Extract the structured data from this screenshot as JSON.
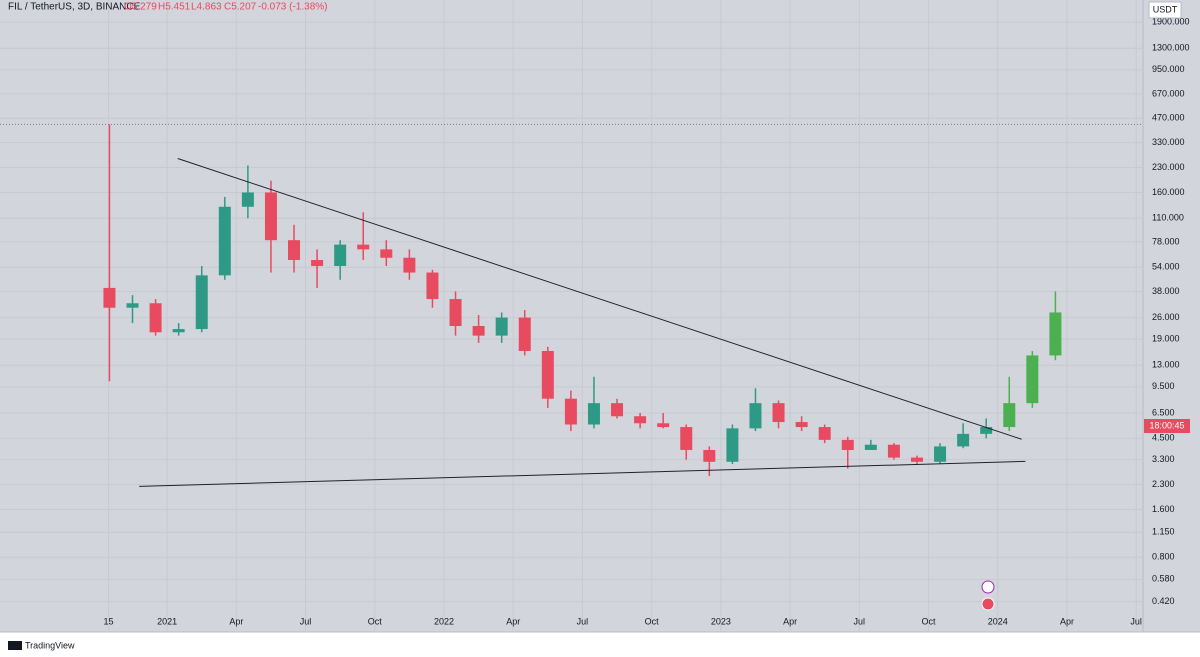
{
  "header": {
    "symbol": "FIL / TetherUS, 3D, BINANCE",
    "open": "O5.279",
    "high": "H5.451",
    "low": "L4.863",
    "close": "C5.207",
    "change": "-0.073 (-1.38%)",
    "currency": "USDT",
    "countdown": "18:00:45",
    "brand": "TradingView"
  },
  "chart_data": {
    "type": "candlestick",
    "log_scale": true,
    "grid": true,
    "up_color": "#2e9a85",
    "down_color": "#e84a5f",
    "projection_color": "#4caf50",
    "trendline_color": "#1e222d",
    "xlim": [
      "2020-05-24",
      "2024-07-10"
    ],
    "ylim": [
      0.27,
      2620
    ],
    "xticks": [
      {
        "value": "2020-10-15",
        "label": "15"
      },
      {
        "value": "2021-01",
        "label": "2021"
      },
      {
        "value": "2021-04",
        "label": "Apr"
      },
      {
        "value": "2021-07",
        "label": "Jul"
      },
      {
        "value": "2021-10",
        "label": "Oct"
      },
      {
        "value": "2022-01",
        "label": "2022"
      },
      {
        "value": "2022-04",
        "label": "Apr"
      },
      {
        "value": "2022-07",
        "label": "Jul"
      },
      {
        "value": "2022-10",
        "label": "Oct"
      },
      {
        "value": "2023-01",
        "label": "2023"
      },
      {
        "value": "2023-04",
        "label": "Apr"
      },
      {
        "value": "2023-07",
        "label": "Jul"
      },
      {
        "value": "2023-10",
        "label": "Oct"
      },
      {
        "value": "2024-01",
        "label": "2024"
      },
      {
        "value": "2024-04",
        "label": "Apr"
      },
      {
        "value": "2024-07",
        "label": "Jul"
      }
    ],
    "yticks": [
      {
        "value": 1900,
        "label": "1900.000"
      },
      {
        "value": 1300,
        "label": "1300.000"
      },
      {
        "value": 950,
        "label": "950.000"
      },
      {
        "value": 670,
        "label": "670.000"
      },
      {
        "value": 470,
        "label": "470.000"
      },
      {
        "value": 330,
        "label": "330.000"
      },
      {
        "value": 230,
        "label": "230.000"
      },
      {
        "value": 160,
        "label": "160.000"
      },
      {
        "value": 110,
        "label": "110.000"
      },
      {
        "value": 78,
        "label": "78.000"
      },
      {
        "value": 54,
        "label": "54.000"
      },
      {
        "value": 38,
        "label": "38.000"
      },
      {
        "value": 26,
        "label": "26.000"
      },
      {
        "value": 19,
        "label": "19.000"
      },
      {
        "value": 13,
        "label": "13.000"
      },
      {
        "value": 9.5,
        "label": "9.500"
      },
      {
        "value": 6.5,
        "label": "6.500"
      },
      {
        "value": 4.5,
        "label": "4.500"
      },
      {
        "value": 3.3,
        "label": "3.300"
      },
      {
        "value": 2.3,
        "label": "2.300"
      },
      {
        "value": 1.6,
        "label": "1.600"
      },
      {
        "value": 1.15,
        "label": "1.150"
      },
      {
        "value": 0.8,
        "label": "0.800"
      },
      {
        "value": 0.58,
        "label": "0.580"
      },
      {
        "value": 0.42,
        "label": "0.420"
      }
    ],
    "candles": {
      "x": [
        "2020-10",
        "2020-11",
        "2020-12",
        "2021-01",
        "2021-02",
        "2021-03",
        "2021-04",
        "2021-05",
        "2021-06",
        "2021-07",
        "2021-08",
        "2021-09",
        "2021-10",
        "2021-11",
        "2021-12",
        "2022-01",
        "2022-02",
        "2022-03",
        "2022-04",
        "2022-05",
        "2022-06",
        "2022-07",
        "2022-08",
        "2022-09",
        "2022-10",
        "2022-11",
        "2022-12",
        "2023-01",
        "2023-02",
        "2023-03",
        "2023-04",
        "2023-05",
        "2023-06",
        "2023-07",
        "2023-08",
        "2023-09",
        "2023-10",
        "2023-11",
        "2023-12"
      ],
      "open": [
        40,
        30,
        32,
        21,
        22,
        48,
        130,
        160,
        80,
        60,
        55,
        75,
        70,
        62,
        50,
        34,
        23,
        20,
        26,
        16,
        8,
        5.5,
        7.5,
        6.2,
        5.6,
        5.3,
        3.8,
        3.2,
        5.2,
        7.5,
        5.7,
        5.3,
        4.4,
        3.8,
        4.1,
        3.4,
        3.2,
        4.0,
        4.8
      ],
      "high": [
        430,
        36,
        34,
        24,
        55,
        150,
        237,
        190,
        100,
        70,
        80,
        120,
        80,
        70,
        52,
        38,
        27,
        28,
        29,
        17,
        9,
        11,
        8,
        6.5,
        6.5,
        5.5,
        4,
        5.5,
        9.3,
        7.8,
        6.2,
        5.5,
        4.6,
        4.4,
        4.2,
        3.5,
        4.2,
        5.6,
        6
      ],
      "low": [
        10.3,
        24,
        20,
        20,
        21,
        45,
        110,
        50,
        50,
        40,
        45,
        60,
        55,
        45,
        30,
        20,
        18,
        18,
        15,
        7,
        5,
        5.2,
        6,
        5.2,
        5.2,
        3.3,
        2.6,
        3.1,
        5,
        5.2,
        5,
        4.2,
        2.9,
        3.8,
        3.3,
        3.1,
        3.1,
        3.9,
        4.5
      ],
      "close": [
        30,
        32,
        21,
        22,
        48,
        130,
        160,
        80,
        60,
        55,
        75,
        70,
        62,
        50,
        34,
        23,
        20,
        26,
        16,
        8,
        5.5,
        7.5,
        6.2,
        5.6,
        5.3,
        3.8,
        3.2,
        5.2,
        7.5,
        5.7,
        5.3,
        4.4,
        3.8,
        4.1,
        3.4,
        3.2,
        4.0,
        4.8,
        5.3
      ]
    },
    "projection": {
      "x": [
        "2024-01",
        "2024-02",
        "2024-03"
      ],
      "open": [
        5.3,
        7.5,
        15
      ],
      "high": [
        11,
        16,
        38
      ],
      "low": [
        5,
        7,
        14
      ],
      "close": [
        7.5,
        15,
        28
      ]
    },
    "trendlines": [
      {
        "x": [
          "2021-01-15",
          "2024-02-02"
        ],
        "y": [
          262,
          4.44
        ]
      },
      {
        "x": [
          "2020-11-25",
          "2024-02-07"
        ],
        "y": [
          2.24,
          3.22
        ]
      }
    ]
  }
}
